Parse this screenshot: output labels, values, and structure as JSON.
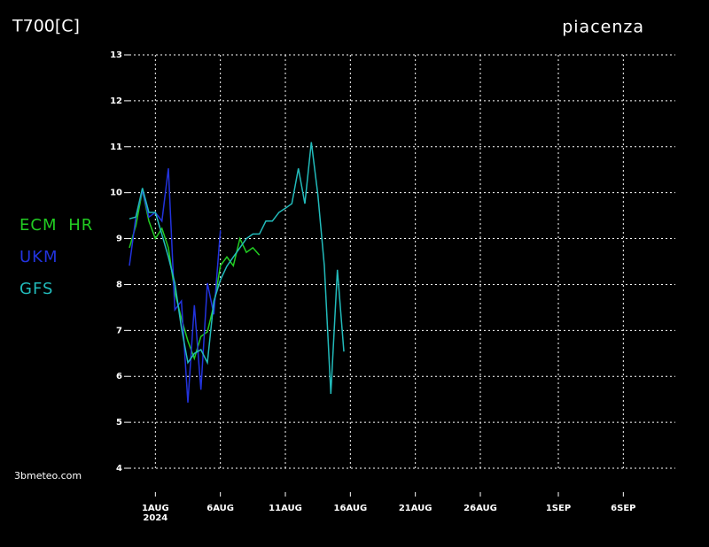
{
  "chart_data": {
    "type": "line",
    "title": "T700[C]",
    "subtitle": "piacenza",
    "source": "3bmeteo.com",
    "x": [
      "2024-07-30T00:00Z",
      "2024-07-30T12:00Z",
      "2024-07-31T00:00Z",
      "2024-07-31T12:00Z",
      "2024-08-01T00:00Z",
      "2024-08-01T12:00Z",
      "2024-08-02T00:00Z",
      "2024-08-02T12:00Z",
      "2024-08-03T00:00Z",
      "2024-08-03T12:00Z",
      "2024-08-04T00:00Z",
      "2024-08-04T12:00Z",
      "2024-08-05T00:00Z",
      "2024-08-05T12:00Z",
      "2024-08-06T00:00Z",
      "2024-08-06T12:00Z",
      "2024-08-07T00:00Z",
      "2024-08-07T12:00Z",
      "2024-08-08T00:00Z",
      "2024-08-08T12:00Z",
      "2024-08-09T00:00Z",
      "2024-08-09T12:00Z",
      "2024-08-10T00:00Z",
      "2024-08-10T12:00Z",
      "2024-08-11T00:00Z",
      "2024-08-11T12:00Z",
      "2024-08-12T00:00Z",
      "2024-08-12T12:00Z",
      "2024-08-13T00:00Z",
      "2024-08-13T12:00Z",
      "2024-08-14T00:00Z",
      "2024-08-14T12:00Z",
      "2024-08-15T00:00Z",
      "2024-08-15T12:00Z"
    ],
    "series": [
      {
        "name": "ECM HR",
        "color": "#22cc22",
        "values": [
          8.8,
          9.28,
          10.05,
          9.38,
          9.0,
          9.22,
          8.8,
          7.83,
          7.26,
          6.77,
          6.39,
          6.87,
          6.97,
          7.55,
          8.41,
          8.6,
          8.41,
          9.0,
          8.7,
          8.8,
          8.64,
          null,
          null,
          null,
          null,
          null,
          null,
          null,
          null,
          null,
          null,
          null,
          null,
          null
        ]
      },
      {
        "name": "UKM",
        "color": "#2233dd",
        "values": [
          8.41,
          9.47,
          10.05,
          9.47,
          9.57,
          9.38,
          10.53,
          7.45,
          7.64,
          5.43,
          7.55,
          5.71,
          8.03,
          7.35,
          9.18,
          null,
          null,
          null,
          null,
          null,
          null,
          null,
          null,
          null,
          null,
          null,
          null,
          null,
          null,
          null,
          null,
          null,
          null,
          null
        ]
      },
      {
        "name": "GFS",
        "color": "#22bbbb",
        "values": [
          9.43,
          9.47,
          10.1,
          9.57,
          9.57,
          9.09,
          8.6,
          8.03,
          7.06,
          6.3,
          6.5,
          6.58,
          6.3,
          7.64,
          8.1,
          8.4,
          8.6,
          8.8,
          9.0,
          9.1,
          9.1,
          9.38,
          9.38,
          9.57,
          9.66,
          9.76,
          10.53,
          9.76,
          11.1,
          9.95,
          8.4,
          5.62,
          8.32,
          6.54
        ]
      }
    ],
    "xlim": [
      "2024-07-30",
      "2024-09-10"
    ],
    "xticks": [
      {
        "value": "2024-08-01",
        "label": "1AUG"
      },
      {
        "value": "2024-08-06",
        "label": "6AUG"
      },
      {
        "value": "2024-08-11",
        "label": "11AUG"
      },
      {
        "value": "2024-08-16",
        "label": "16AUG"
      },
      {
        "value": "2024-08-21",
        "label": "21AUG"
      },
      {
        "value": "2024-08-26",
        "label": "26AUG"
      },
      {
        "value": "2024-09-01",
        "label": "1SEP"
      },
      {
        "value": "2024-09-06",
        "label": "6SEP"
      }
    ],
    "x_year_label": "2024",
    "ylim": [
      4,
      13
    ],
    "yticks": [
      4,
      5,
      6,
      7,
      8,
      9,
      10,
      11,
      12,
      13
    ],
    "grid": true
  }
}
